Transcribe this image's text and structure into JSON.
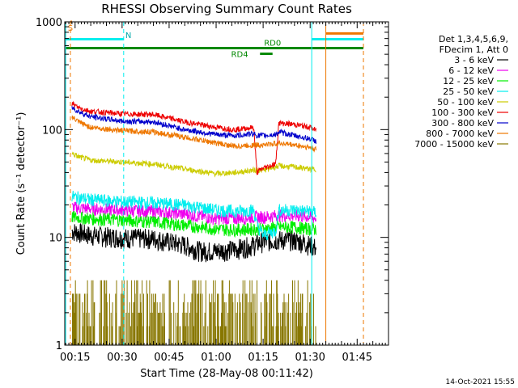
{
  "chart_data": {
    "type": "line",
    "title": "RHESSI Observing Summary Count Rates",
    "xlabel": "Start Time (28-May-08 00:11:42)",
    "ylabel": "Count Rate (s⁻¹ detector⁻¹)",
    "yscale": "log",
    "xlim_minutes": [
      11.7,
      115
    ],
    "ylim": [
      1,
      1000
    ],
    "x_tick_minutes": [
      15,
      30,
      45,
      60,
      75,
      90,
      105
    ],
    "x_tick_labels": [
      "00:15",
      "00:30",
      "00:45",
      "01:00",
      "01:15",
      "01:30",
      "01:45"
    ],
    "y_tick_values": [
      1,
      10,
      100,
      1000
    ],
    "y_tick_labels": [
      "1",
      "10",
      "100",
      "1000"
    ],
    "legend": {
      "placement": "right",
      "header": [
        "Det 1,3,4,5,6,9,",
        "FDecim 1, Att 0"
      ],
      "entries": [
        {
          "label": "3 - 6 keV",
          "color": "#000000"
        },
        {
          "label": "6 - 12 keV",
          "color": "#ee00ee"
        },
        {
          "label": "12 - 25 keV",
          "color": "#00ee00"
        },
        {
          "label": "25 - 50 keV",
          "color": "#00eeee"
        },
        {
          "label": "50 - 100 keV",
          "color": "#cccc00"
        },
        {
          "label": "100 - 300 keV",
          "color": "#ee0000"
        },
        {
          "label": "300 - 800 keV",
          "color": "#0000cc"
        },
        {
          "label": "800 - 7000 keV",
          "color": "#ee7700"
        },
        {
          "label": "7000 - 15000 keV",
          "color": "#887700"
        }
      ]
    },
    "series": [
      {
        "name": "3 - 6 keV",
        "color": "#000000",
        "x": [
          14,
          20,
          30,
          40,
          50,
          55,
          60,
          66,
          72,
          74,
          75,
          80,
          84,
          88,
          92
        ],
        "y": [
          11.5,
          10.5,
          10,
          9.8,
          8.5,
          7.5,
          7.5,
          7.8,
          8.5,
          9,
          9.2,
          9.5,
          9.5,
          9,
          8
        ]
      },
      {
        "name": "6 - 12 keV",
        "color": "#ee00ee",
        "x": [
          14,
          20,
          30,
          40,
          50,
          60,
          66,
          72,
          75,
          80,
          85,
          90,
          92
        ],
        "y": [
          19,
          18.5,
          18,
          17.5,
          16.5,
          15,
          15,
          15.5,
          15.5,
          16,
          16,
          15.5,
          15
        ]
      },
      {
        "name": "12 - 25 keV",
        "color": "#00ee00",
        "x": [
          14,
          20,
          30,
          40,
          50,
          60,
          66,
          72,
          75,
          80,
          85,
          90,
          92
        ],
        "y": [
          15.5,
          15,
          14.5,
          14,
          13,
          12,
          11.8,
          12,
          12,
          12.5,
          12.5,
          12,
          12
        ]
      },
      {
        "name": "25 - 50 keV",
        "color": "#00eeee",
        "x": [
          14,
          20,
          30,
          40,
          50,
          60,
          66,
          72,
          73,
          75,
          79,
          80,
          85,
          90,
          92
        ],
        "y": [
          24,
          22.5,
          21.5,
          21,
          20,
          18,
          17.5,
          18,
          13,
          10.5,
          11.5,
          18,
          18,
          17.5,
          17
        ]
      },
      {
        "name": "50 - 100 keV",
        "color": "#cccc00",
        "x": [
          14,
          16,
          20,
          30,
          40,
          50,
          60,
          66,
          72,
          75,
          80,
          85,
          90,
          92
        ],
        "y": [
          60,
          56,
          52,
          50,
          48,
          43,
          39,
          40,
          42,
          42,
          46,
          45,
          43,
          43
        ]
      },
      {
        "name": "100 - 300 keV",
        "color": "#ee0000",
        "x": [
          14,
          16,
          20,
          30,
          40,
          50,
          60,
          66,
          72,
          73,
          75,
          79,
          80,
          85,
          90,
          92
        ],
        "y": [
          175,
          160,
          148,
          140,
          138,
          118,
          105,
          100,
          105,
          40,
          44,
          48,
          115,
          112,
          105,
          98
        ]
      },
      {
        "name": "300 - 800 keV",
        "color": "#0000cc",
        "x": [
          14,
          16,
          20,
          30,
          40,
          50,
          60,
          66,
          72,
          73,
          75,
          79,
          80,
          85,
          90,
          92
        ],
        "y": [
          160,
          148,
          132,
          120,
          118,
          100,
          90,
          88,
          92,
          88,
          88,
          90,
          95,
          88,
          82,
          78
        ]
      },
      {
        "name": "800 - 7000 keV",
        "color": "#ee7700",
        "x": [
          14,
          16,
          20,
          30,
          40,
          50,
          60,
          66,
          72,
          75,
          80,
          85,
          90,
          92
        ],
        "y": [
          130,
          118,
          105,
          98,
          95,
          85,
          75,
          70,
          72,
          72,
          75,
          72,
          68,
          65
        ]
      },
      {
        "name": "7000 - 15000 keV",
        "color": "#887700",
        "x": [
          14,
          92
        ],
        "y": [
          1.5,
          1.5
        ]
      }
    ],
    "annotations": [
      {
        "label": "S",
        "x_minutes": 13.5,
        "y": 830
      },
      {
        "label": "N",
        "x_minutes": 32,
        "y": 710
      },
      {
        "label": "RD0",
        "x_minutes": 78,
        "y": 600
      },
      {
        "label": "RD4",
        "x_minutes": 67.5,
        "y": 470
      }
    ],
    "observing_flags": [
      {
        "name": "SAA",
        "color": "#ee7700",
        "x_minutes": [
          13.5,
          14
        ],
        "level_y": 1000
      },
      {
        "name": "Night",
        "color": "#00eeee",
        "x_minutes": [
          12,
          30.5
        ],
        "level_y": 690
      },
      {
        "name": "Night",
        "color": "#00eeee",
        "x_minutes": [
          90.5,
          107
        ],
        "level_y": 690
      },
      {
        "name": "SAA",
        "color": "#ee7700",
        "x_minutes": [
          95,
          107
        ],
        "level_y": 780
      },
      {
        "name": "Decimation",
        "color": "#008800",
        "x_minutes": [
          12,
          107
        ],
        "level_y": 570
      },
      {
        "name": "RD4",
        "color": "#008800",
        "x_minutes": [
          74,
          78
        ],
        "level_y": 505
      }
    ],
    "vertical_markers": [
      {
        "color": "#00eeee",
        "style": "solid",
        "x_minutes": 12
      },
      {
        "color": "#ee7700",
        "style": "dashed",
        "x_minutes": 13.5
      },
      {
        "color": "#00eeee",
        "style": "dashed",
        "x_minutes": 30.5
      },
      {
        "color": "#00eeee",
        "style": "solid",
        "x_minutes": 90.5
      },
      {
        "color": "#ee7700",
        "style": "solid",
        "x_minutes": 95
      },
      {
        "color": "#ee7700",
        "style": "dashed",
        "x_minutes": 107
      }
    ]
  },
  "footer_timestamp": "14-Oct-2021 15:55"
}
